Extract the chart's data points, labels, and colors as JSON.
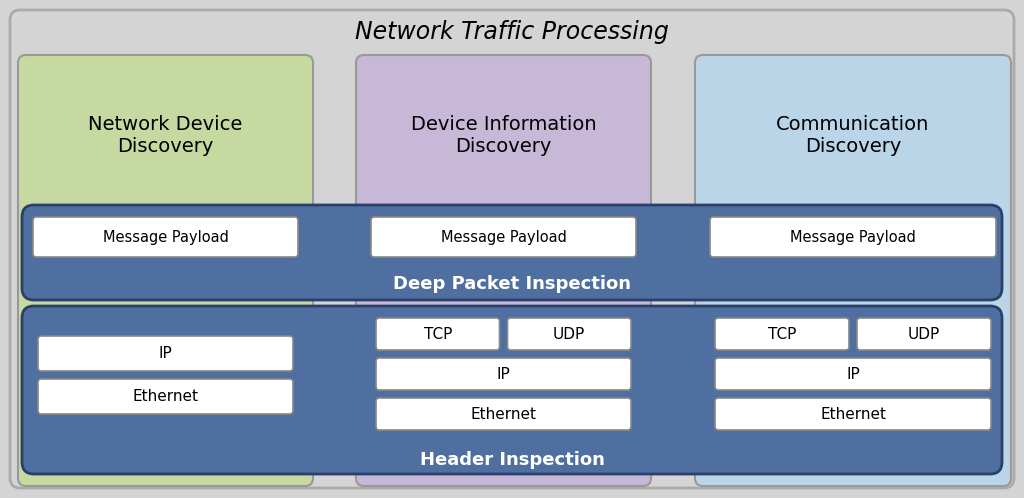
{
  "title": "Network Traffic Processing",
  "bg_outer": "#d4d4d4",
  "col1_bg": "#c5d9a0",
  "col2_bg": "#c8b8d8",
  "col3_bg": "#bad4e8",
  "dpi_bg": "#4f6fa0",
  "header_bg": "#4f6fa0",
  "box_fill": "#ffffff",
  "col1_label": "Network Device\nDiscovery",
  "col2_label": "Device Information\nDiscovery",
  "col3_label": "Communication\nDiscovery",
  "dpi_label": "Deep Packet Inspection",
  "header_label": "Header Inspection",
  "figsize": [
    10.24,
    4.98
  ],
  "dpi": 100
}
